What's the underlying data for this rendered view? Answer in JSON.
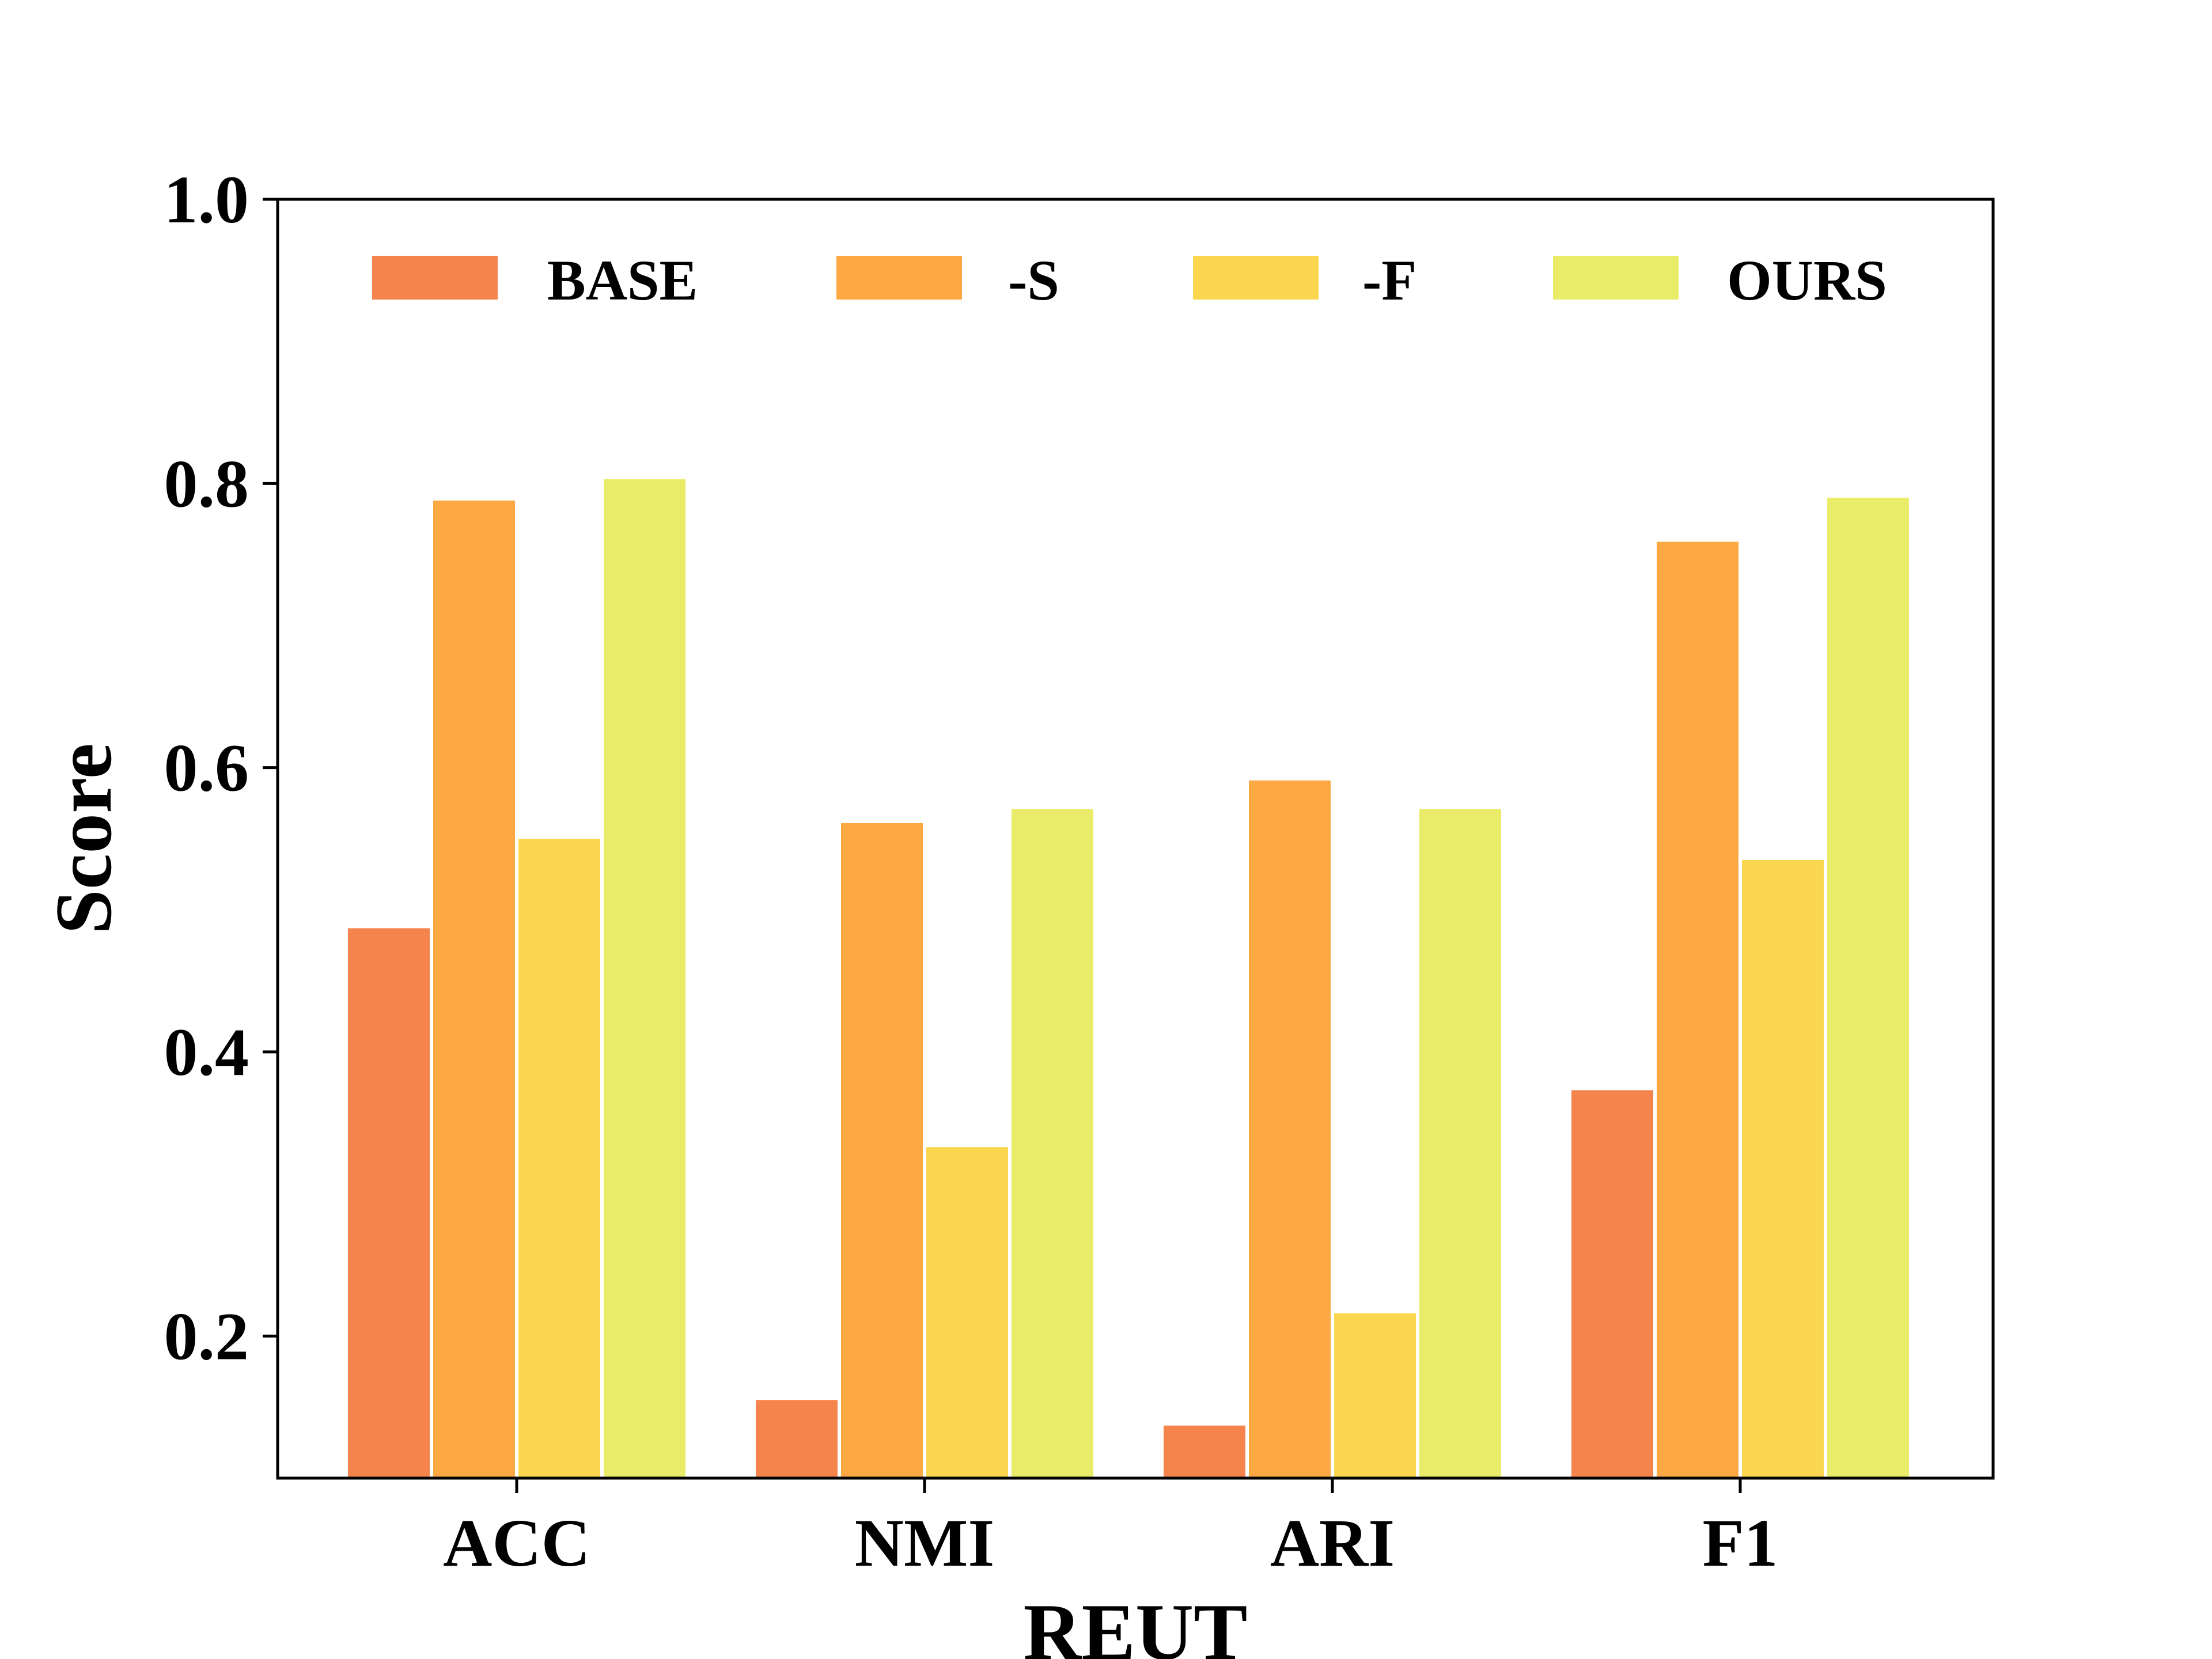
{
  "chart_data": {
    "type": "bar",
    "title": "",
    "xlabel": "REUT",
    "ylabel": "Score",
    "ylim": [
      0.1,
      1.0
    ],
    "yticks": [
      "0.2",
      "0.4",
      "0.6",
      "0.8",
      "1.0"
    ],
    "categories": [
      "ACC",
      "NMI",
      "ARI",
      "F1"
    ],
    "series": [
      {
        "name": "BASE",
        "color": "#f4844c",
        "values": [
          0.487,
          0.155,
          0.137,
          0.373
        ]
      },
      {
        "name": "-S",
        "color": "#fca944",
        "values": [
          0.788,
          0.561,
          0.591,
          0.759
        ]
      },
      {
        "name": "-F",
        "color": "#fad74e",
        "values": [
          0.55,
          0.333,
          0.216,
          0.535
        ]
      },
      {
        "name": "OURS",
        "color": "#e9ec68",
        "values": [
          0.803,
          0.571,
          0.571,
          0.79
        ]
      }
    ],
    "grid": false,
    "legend": "top"
  }
}
